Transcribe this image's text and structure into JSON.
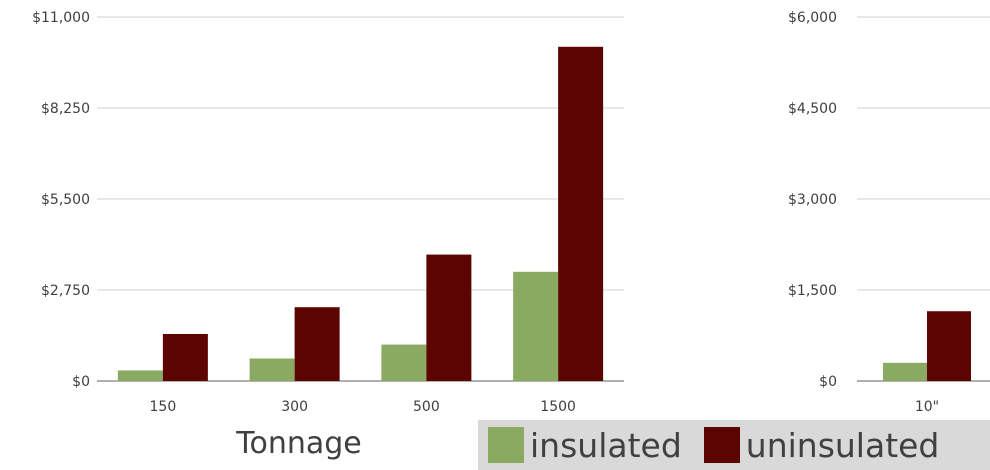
{
  "chart_data": [
    {
      "type": "bar",
      "title": "",
      "xlabel": "Tonnage",
      "ylabel": "",
      "ylim": [
        0,
        11000
      ],
      "yticks": [
        "$0",
        "$2,750",
        "$5,500",
        "$8,250",
        "$11,000"
      ],
      "categories": [
        "150",
        "300",
        "500",
        "1500"
      ],
      "series": [
        {
          "name": "insulated",
          "values": [
            320,
            680,
            1100,
            3300
          ]
        },
        {
          "name": "uninsulated",
          "values": [
            1420,
            2230,
            3820,
            10100
          ]
        }
      ],
      "grid": true,
      "legend": "bottom"
    },
    {
      "type": "bar",
      "title": "",
      "xlabel": "",
      "ylabel": "",
      "ylim": [
        0,
        6000
      ],
      "yticks": [
        "$0",
        "$1,500",
        "$3,000",
        "$4,500",
        "$6,000"
      ],
      "categories": [
        "10\""
      ],
      "series": [
        {
          "name": "insulated",
          "values": [
            300
          ]
        },
        {
          "name": "uninsulated",
          "values": [
            1150
          ]
        }
      ],
      "grid": true,
      "legend": "bottom"
    }
  ],
  "colors": {
    "insulated": "#8aaa62",
    "uninsulated": "#5c0500"
  },
  "legend": {
    "insulated_label": "insulated",
    "uninsulated_label": "uninsulated"
  }
}
